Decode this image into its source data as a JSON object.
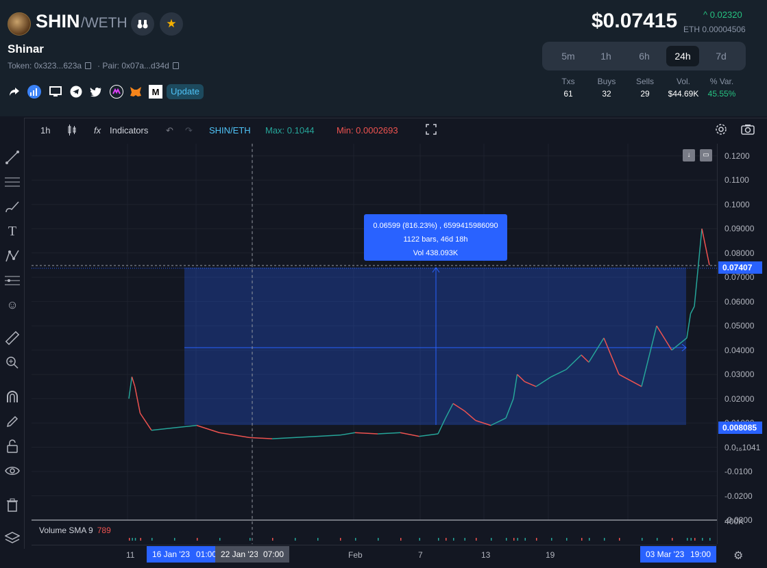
{
  "header": {
    "symbol": "SHIN",
    "quote": "/WETH",
    "token_name": "Shinar",
    "token_addr": "Token: 0x323...623a",
    "pair_addr": "Pair: 0x07a...d34d",
    "update_label": "Update",
    "price": "$0.07415",
    "change": "^ 0.02320",
    "eth_price": "ETH 0.00004506",
    "timeframes": [
      "5m",
      "1h",
      "6h",
      "24h",
      "7d"
    ],
    "active_timeframe": "24h",
    "stats": [
      {
        "label": "Txs",
        "value": "61"
      },
      {
        "label": "Buys",
        "value": "32"
      },
      {
        "label": "Sells",
        "value": "29"
      },
      {
        "label": "Vol.",
        "value": "$44.69K"
      },
      {
        "label": "% Var.",
        "value": "45.55%"
      }
    ],
    "social_icons": [
      "share-icon",
      "chart-icon",
      "monitor-icon",
      "telegram-icon",
      "twitter-icon",
      "coin-icon",
      "metamask-icon",
      "medium-icon"
    ]
  },
  "toolbar": {
    "interval": "1h",
    "indicators": "Indicators",
    "pair": "SHIN/ETH",
    "max": "Max: 0.1044",
    "min": "Min: 0.0002693"
  },
  "colors": {
    "up": "#26a69a",
    "down": "#ef5350",
    "accent": "#2962ff",
    "pair": "#4fc3f7"
  },
  "chart_data": {
    "type": "line",
    "series": [
      {
        "x": [
          0,
          4,
          8,
          15,
          30,
          60,
          90,
          120,
          160,
          190,
          220,
          250,
          280,
          300,
          330,
          360,
          385,
          410,
          420,
          430,
          445,
          460,
          480,
          500,
          510,
          515,
          525,
          540,
          560,
          580,
          600,
          610,
          630,
          650,
          680,
          700,
          720,
          740,
          745,
          750,
          760,
          770
        ],
        "values": [
          0.02,
          0.029,
          0.025,
          0.014,
          0.007,
          0.008,
          0.009,
          0.006,
          0.004,
          0.0035,
          0.004,
          0.0045,
          0.005,
          0.006,
          0.0055,
          0.006,
          0.0045,
          0.0055,
          0.012,
          0.018,
          0.015,
          0.011,
          0.009,
          0.012,
          0.02,
          0.03,
          0.027,
          0.025,
          0.029,
          0.032,
          0.038,
          0.035,
          0.045,
          0.03,
          0.025,
          0.05,
          0.04,
          0.045,
          0.055,
          0.058,
          0.09,
          0.075
        ]
      }
    ],
    "ylim": [
      -0.03,
      0.125
    ],
    "price_ticks": [
      "0.1200",
      "0.1100",
      "0.1000",
      "0.09000",
      "0.08000",
      "0.07000",
      "0.06000",
      "0.05000",
      "0.04000",
      "0.03000",
      "0.02000",
      "0.01000",
      "0.0₁₆1041",
      "-0.0100",
      "-0.0200",
      "-0.0300"
    ],
    "current_price_label": "0.07407",
    "low_label": "0.008085",
    "time_ticks": [
      "11",
      "Feb",
      "7",
      "13",
      "19"
    ],
    "time_labels": [
      "16 Jan '23",
      "01:00",
      "22 Jan '23",
      "07:00",
      "03 Mar '23",
      "19:00"
    ],
    "volume_label": "400K",
    "measure": {
      "line1": "0.06599 (816.23%) , 6599415986090",
      "line2": "1122 bars, 46d 18h",
      "line3": "Vol 438.093K"
    },
    "volume_legend": "Volume SMA 9",
    "volume_legend_value": "789"
  }
}
